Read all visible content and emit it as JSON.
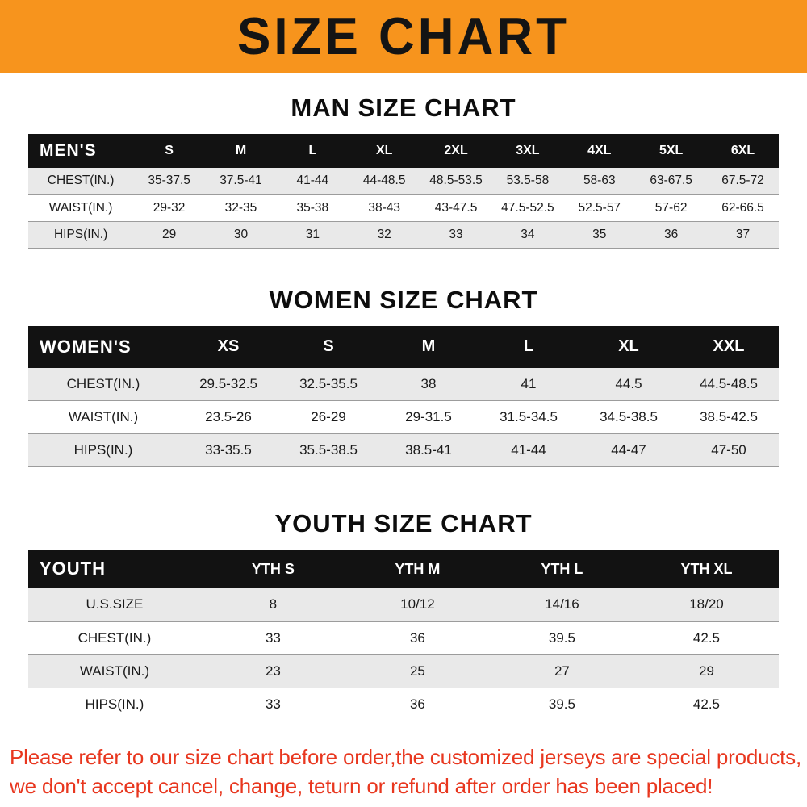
{
  "banner": {
    "title": "SIZE CHART",
    "bg_color": "#f7941d",
    "text_color": "#141414"
  },
  "sections": [
    {
      "heading": "MAN SIZE CHART",
      "table": {
        "header_label": "MEN'S",
        "columns": [
          "S",
          "M",
          "L",
          "XL",
          "2XL",
          "3XL",
          "4XL",
          "5XL",
          "6XL"
        ],
        "rows": [
          {
            "label": "CHEST(IN.)",
            "values": [
              "35-37.5",
              "37.5-41",
              "41-44",
              "44-48.5",
              "48.5-53.5",
              "53.5-58",
              "58-63",
              "63-67.5",
              "67.5-72"
            ]
          },
          {
            "label": "WAIST(IN.)",
            "values": [
              "29-32",
              "32-35",
              "35-38",
              "38-43",
              "43-47.5",
              "47.5-52.5",
              "52.5-57",
              "57-62",
              "62-66.5"
            ]
          },
          {
            "label": "HIPS(IN.)",
            "values": [
              "29",
              "30",
              "31",
              "32",
              "33",
              "34",
              "35",
              "36",
              "37"
            ]
          }
        ]
      }
    },
    {
      "heading": "WOMEN SIZE CHART",
      "table": {
        "header_label": "WOMEN'S",
        "columns": [
          "XS",
          "S",
          "M",
          "L",
          "XL",
          "XXL"
        ],
        "rows": [
          {
            "label": "CHEST(IN.)",
            "values": [
              "29.5-32.5",
              "32.5-35.5",
              "38",
              "41",
              "44.5",
              "44.5-48.5"
            ]
          },
          {
            "label": "WAIST(IN.)",
            "values": [
              "23.5-26",
              "26-29",
              "29-31.5",
              "31.5-34.5",
              "34.5-38.5",
              "38.5-42.5"
            ]
          },
          {
            "label": "HIPS(IN.)",
            "values": [
              "33-35.5",
              "35.5-38.5",
              "38.5-41",
              "41-44",
              "44-47",
              "47-50"
            ]
          }
        ]
      }
    },
    {
      "heading": "YOUTH SIZE CHART",
      "table": {
        "header_label": "YOUTH",
        "columns": [
          "YTH S",
          "YTH M",
          "YTH L",
          "YTH XL"
        ],
        "rows": [
          {
            "label": "U.S.SIZE",
            "values": [
              "8",
              "10/12",
              "14/16",
              "18/20"
            ]
          },
          {
            "label": "CHEST(IN.)",
            "values": [
              "33",
              "36",
              "39.5",
              "42.5"
            ]
          },
          {
            "label": "WAIST(IN.)",
            "values": [
              "23",
              "25",
              "27",
              "29"
            ]
          },
          {
            "label": "HIPS(IN.)",
            "values": [
              "33",
              "36",
              "39.5",
              "42.5"
            ]
          }
        ]
      }
    }
  ],
  "footer": {
    "color": "#e8371f",
    "lines": [
      "Please refer to our size chart before order,the customized jerseys are special products,",
      "we don't accept cancel, change, teturn or refund after order has been placed!"
    ]
  }
}
